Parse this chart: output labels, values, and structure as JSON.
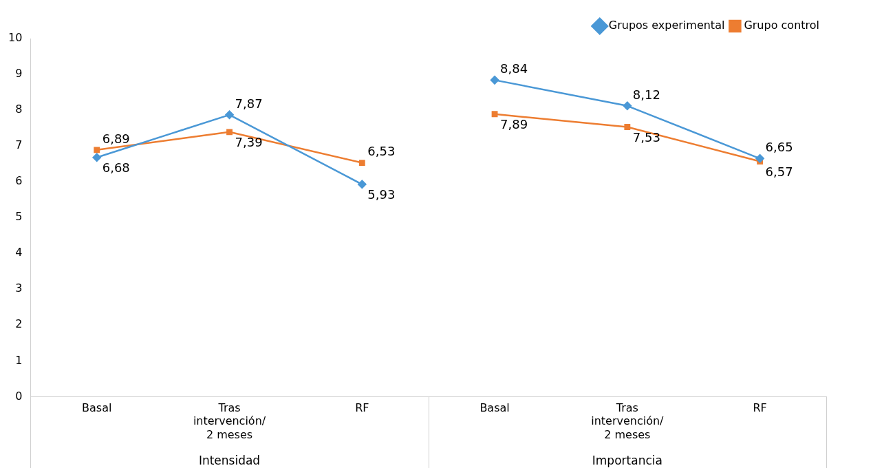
{
  "chart_data": {
    "type": "line",
    "categories": [
      "Basal",
      "Tras intervención/ 2 meses",
      "RF",
      "Basal",
      "Tras intervención/ 2 meses",
      "RF"
    ],
    "series": [
      {
        "name": "Grupos experimental",
        "color": "#4a98d6",
        "marker": "diamond",
        "values": [
          6.68,
          7.87,
          5.93,
          8.84,
          8.12,
          6.65
        ],
        "value_labels": [
          "6,68",
          "7,87",
          "5,93",
          "8,84",
          "8,12",
          "6,65"
        ]
      },
      {
        "name": "Grupo control",
        "color": "#ed7d31",
        "marker": "square",
        "values": [
          6.89,
          7.39,
          6.53,
          7.89,
          7.53,
          6.57
        ],
        "value_labels": [
          "6,89",
          "7,39",
          "6,53",
          "7,89",
          "7,53",
          "6,57"
        ]
      }
    ],
    "annotations": [
      "Intensidad",
      "Importancia"
    ],
    "ylim": [
      0,
      10
    ],
    "yticks": [
      0,
      1,
      2,
      3,
      4,
      5,
      6,
      7,
      8,
      9,
      10
    ],
    "grid": false,
    "legend": "top right",
    "line_style": "solid"
  }
}
